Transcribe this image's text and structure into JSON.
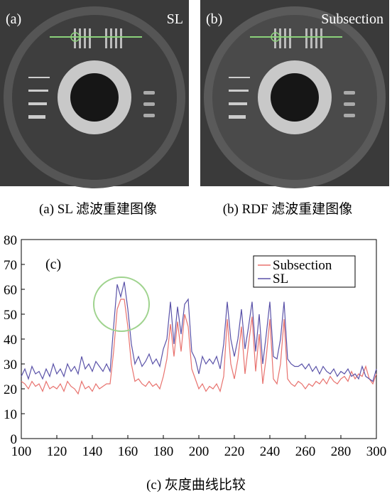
{
  "panels": [
    {
      "label": "(a)",
      "method": "SL",
      "caption": "(a) SL 滤波重建图像"
    },
    {
      "label": "(b)",
      "method": "Subsection",
      "caption": "(b) RDF 滤波重建图像"
    }
  ],
  "chart_data": {
    "type": "line",
    "annotation": "(c)",
    "x": [
      100,
      102,
      104,
      106,
      108,
      110,
      112,
      114,
      116,
      118,
      120,
      122,
      124,
      126,
      128,
      130,
      132,
      134,
      136,
      138,
      140,
      142,
      144,
      146,
      148,
      150,
      152,
      154,
      156,
      158,
      160,
      162,
      164,
      166,
      168,
      170,
      172,
      174,
      176,
      178,
      180,
      182,
      184,
      186,
      188,
      190,
      192,
      194,
      196,
      198,
      200,
      202,
      204,
      206,
      208,
      210,
      212,
      214,
      216,
      218,
      220,
      222,
      224,
      226,
      228,
      230,
      232,
      234,
      236,
      238,
      240,
      242,
      244,
      246,
      248,
      250,
      252,
      254,
      256,
      258,
      260,
      262,
      264,
      266,
      268,
      270,
      272,
      274,
      276,
      278,
      280,
      282,
      284,
      286,
      288,
      290,
      292,
      294,
      296,
      298,
      300
    ],
    "series": [
      {
        "name": "Subsection",
        "color": "#e8726e",
        "values": [
          23,
          22,
          20,
          23,
          21,
          22,
          19,
          23,
          20,
          21,
          20,
          22,
          19,
          23,
          21,
          20,
          18,
          23,
          20,
          21,
          19,
          22,
          20,
          21,
          22,
          22,
          35,
          52,
          56,
          56,
          45,
          30,
          23,
          24,
          22,
          21,
          23,
          21,
          22,
          20,
          25,
          32,
          46,
          33,
          47,
          35,
          50,
          45,
          28,
          24,
          20,
          22,
          19,
          21,
          20,
          22,
          19,
          25,
          48,
          30,
          24,
          32,
          45,
          26,
          38,
          49,
          27,
          42,
          22,
          33,
          48,
          24,
          22,
          30,
          48,
          24,
          22,
          21,
          23,
          22,
          20,
          22,
          21,
          23,
          22,
          24,
          22,
          25,
          23,
          22,
          24,
          25,
          23,
          27,
          24,
          26,
          25,
          29,
          24,
          22,
          26
        ]
      },
      {
        "name": "SL",
        "color": "#5a52a8",
        "values": [
          25,
          28,
          24,
          29,
          26,
          27,
          24,
          28,
          25,
          30,
          26,
          28,
          25,
          30,
          27,
          29,
          26,
          33,
          28,
          30,
          27,
          31,
          29,
          27,
          30,
          27,
          45,
          62,
          57,
          63,
          52,
          38,
          30,
          33,
          29,
          31,
          34,
          30,
          32,
          29,
          36,
          40,
          55,
          38,
          53,
          42,
          54,
          56,
          35,
          32,
          26,
          33,
          30,
          32,
          30,
          33,
          28,
          38,
          55,
          40,
          33,
          40,
          52,
          36,
          45,
          55,
          35,
          50,
          30,
          42,
          55,
          33,
          32,
          40,
          55,
          32,
          30,
          29,
          29,
          30,
          28,
          30,
          27,
          29,
          26,
          29,
          27,
          26,
          28,
          25,
          27,
          26,
          28,
          25,
          26,
          24,
          29,
          25,
          24,
          23,
          28
        ]
      }
    ],
    "xlim": [
      100,
      300
    ],
    "ylim": [
      0,
      80
    ],
    "xticks": [
      100,
      120,
      140,
      160,
      180,
      200,
      220,
      240,
      260,
      280,
      300
    ],
    "yticks": [
      0,
      10,
      20,
      30,
      40,
      50,
      60,
      70,
      80
    ],
    "legend": "upper right"
  },
  "caption": "(c)  灰度曲线比较"
}
